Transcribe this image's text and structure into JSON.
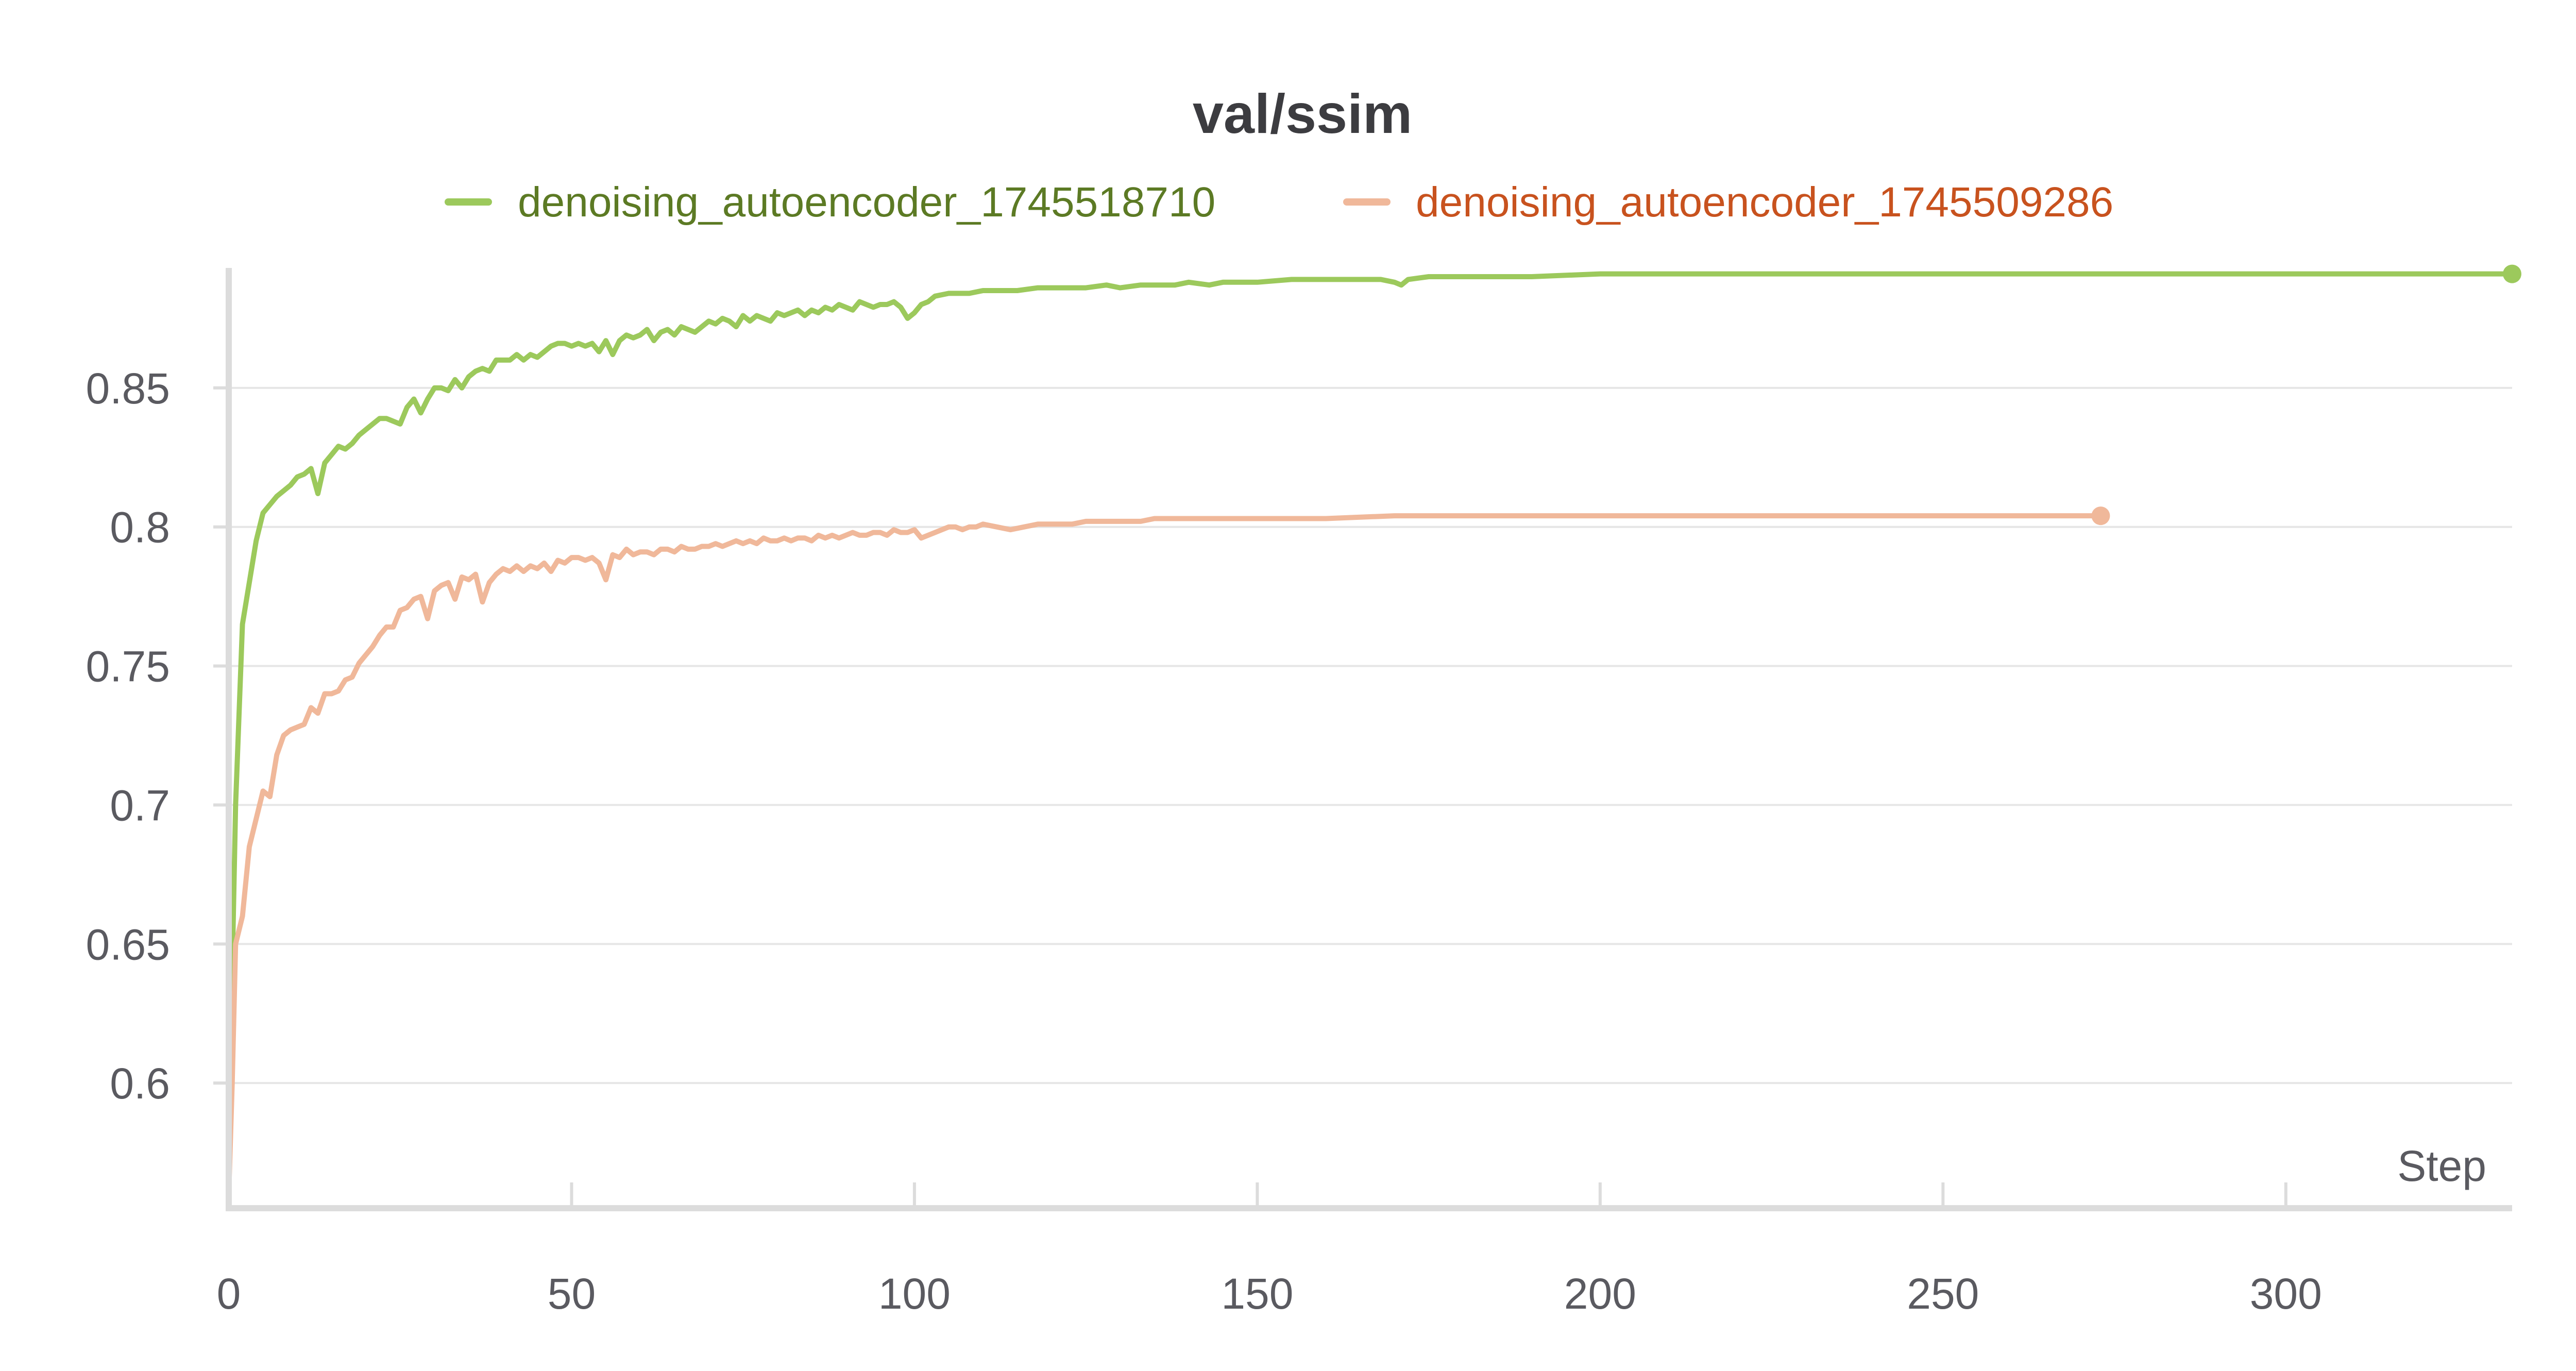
{
  "chart_data": {
    "type": "line",
    "title": "val/ssim",
    "xlabel": "Step",
    "ylabel": "",
    "xlim": [
      0,
      333
    ],
    "ylim": [
      0.555,
      0.895
    ],
    "x_ticks": [
      0,
      50,
      100,
      150,
      200,
      250,
      300
    ],
    "y_ticks": [
      0.6,
      0.65,
      0.7,
      0.75,
      0.8,
      0.85
    ],
    "x_tick_labels": [
      "0",
      "50",
      "100",
      "150",
      "200",
      "250",
      "300"
    ],
    "y_tick_labels": [
      "0.6",
      "0.65",
      "0.7",
      "0.75",
      "0.8",
      "0.85"
    ],
    "grid": "horizontal",
    "legend": "top-center",
    "series": [
      {
        "name": "denoising_autoencoder_1745518710",
        "color": "#9cc95c",
        "label_color": "#5c7a24",
        "points": [
          [
            0,
            0.56
          ],
          [
            0.5,
            0.64
          ],
          [
            1,
            0.7
          ],
          [
            2,
            0.765
          ],
          [
            3,
            0.78
          ],
          [
            4,
            0.795
          ],
          [
            5,
            0.805
          ],
          [
            6,
            0.808
          ],
          [
            7,
            0.811
          ],
          [
            8,
            0.813
          ],
          [
            9,
            0.815
          ],
          [
            10,
            0.818
          ],
          [
            11,
            0.819
          ],
          [
            12,
            0.821
          ],
          [
            13,
            0.812
          ],
          [
            14,
            0.823
          ],
          [
            15,
            0.826
          ],
          [
            16,
            0.829
          ],
          [
            17,
            0.828
          ],
          [
            18,
            0.83
          ],
          [
            19,
            0.833
          ],
          [
            20,
            0.835
          ],
          [
            21,
            0.837
          ],
          [
            22,
            0.839
          ],
          [
            23,
            0.839
          ],
          [
            24,
            0.838
          ],
          [
            25,
            0.837
          ],
          [
            26,
            0.843
          ],
          [
            27,
            0.846
          ],
          [
            28,
            0.841
          ],
          [
            29,
            0.846
          ],
          [
            30,
            0.85
          ],
          [
            31,
            0.85
          ],
          [
            32,
            0.849
          ],
          [
            33,
            0.853
          ],
          [
            34,
            0.85
          ],
          [
            35,
            0.854
          ],
          [
            36,
            0.856
          ],
          [
            37,
            0.857
          ],
          [
            38,
            0.856
          ],
          [
            39,
            0.86
          ],
          [
            40,
            0.86
          ],
          [
            41,
            0.86
          ],
          [
            42,
            0.862
          ],
          [
            43,
            0.86
          ],
          [
            44,
            0.862
          ],
          [
            45,
            0.861
          ],
          [
            46,
            0.863
          ],
          [
            47,
            0.865
          ],
          [
            48,
            0.866
          ],
          [
            49,
            0.866
          ],
          [
            50,
            0.865
          ],
          [
            51,
            0.866
          ],
          [
            52,
            0.865
          ],
          [
            53,
            0.866
          ],
          [
            54,
            0.863
          ],
          [
            55,
            0.867
          ],
          [
            56,
            0.862
          ],
          [
            57,
            0.867
          ],
          [
            58,
            0.869
          ],
          [
            59,
            0.868
          ],
          [
            60,
            0.869
          ],
          [
            61,
            0.871
          ],
          [
            62,
            0.867
          ],
          [
            63,
            0.87
          ],
          [
            64,
            0.871
          ],
          [
            65,
            0.869
          ],
          [
            66,
            0.872
          ],
          [
            67,
            0.871
          ],
          [
            68,
            0.87
          ],
          [
            69,
            0.872
          ],
          [
            70,
            0.874
          ],
          [
            71,
            0.873
          ],
          [
            72,
            0.875
          ],
          [
            73,
            0.874
          ],
          [
            74,
            0.872
          ],
          [
            75,
            0.876
          ],
          [
            76,
            0.874
          ],
          [
            77,
            0.876
          ],
          [
            78,
            0.875
          ],
          [
            79,
            0.874
          ],
          [
            80,
            0.877
          ],
          [
            81,
            0.876
          ],
          [
            82,
            0.877
          ],
          [
            83,
            0.878
          ],
          [
            84,
            0.876
          ],
          [
            85,
            0.878
          ],
          [
            86,
            0.877
          ],
          [
            87,
            0.879
          ],
          [
            88,
            0.878
          ],
          [
            89,
            0.88
          ],
          [
            90,
            0.879
          ],
          [
            91,
            0.878
          ],
          [
            92,
            0.881
          ],
          [
            93,
            0.88
          ],
          [
            94,
            0.879
          ],
          [
            95,
            0.88
          ],
          [
            96,
            0.88
          ],
          [
            97,
            0.881
          ],
          [
            98,
            0.879
          ],
          [
            99,
            0.875
          ],
          [
            100,
            0.877
          ],
          [
            101,
            0.88
          ],
          [
            102,
            0.881
          ],
          [
            103,
            0.883
          ],
          [
            105,
            0.884
          ],
          [
            108,
            0.884
          ],
          [
            110,
            0.885
          ],
          [
            113,
            0.885
          ],
          [
            115,
            0.885
          ],
          [
            118,
            0.886
          ],
          [
            120,
            0.886
          ],
          [
            123,
            0.886
          ],
          [
            125,
            0.886
          ],
          [
            128,
            0.887
          ],
          [
            130,
            0.886
          ],
          [
            133,
            0.887
          ],
          [
            135,
            0.887
          ],
          [
            138,
            0.887
          ],
          [
            140,
            0.888
          ],
          [
            143,
            0.887
          ],
          [
            145,
            0.888
          ],
          [
            148,
            0.888
          ],
          [
            150,
            0.888
          ],
          [
            155,
            0.889
          ],
          [
            160,
            0.889
          ],
          [
            165,
            0.889
          ],
          [
            168,
            0.889
          ],
          [
            170,
            0.888
          ],
          [
            171,
            0.887
          ],
          [
            172,
            0.889
          ],
          [
            175,
            0.89
          ],
          [
            180,
            0.89
          ],
          [
            190,
            0.89
          ],
          [
            200,
            0.891
          ],
          [
            220,
            0.891
          ],
          [
            250,
            0.891
          ],
          [
            280,
            0.891
          ],
          [
            310,
            0.891
          ],
          [
            333,
            0.891
          ]
        ]
      },
      {
        "name": "denoising_autoencoder_1745509286",
        "color": "#f0b89a",
        "label_color": "#c8521e",
        "points": [
          [
            0,
            0.56
          ],
          [
            0.5,
            0.6
          ],
          [
            1,
            0.65
          ],
          [
            2,
            0.66
          ],
          [
            3,
            0.685
          ],
          [
            4,
            0.695
          ],
          [
            5,
            0.705
          ],
          [
            6,
            0.703
          ],
          [
            7,
            0.718
          ],
          [
            8,
            0.725
          ],
          [
            9,
            0.727
          ],
          [
            10,
            0.728
          ],
          [
            11,
            0.729
          ],
          [
            12,
            0.735
          ],
          [
            13,
            0.733
          ],
          [
            14,
            0.74
          ],
          [
            15,
            0.74
          ],
          [
            16,
            0.741
          ],
          [
            17,
            0.745
          ],
          [
            18,
            0.746
          ],
          [
            19,
            0.751
          ],
          [
            20,
            0.754
          ],
          [
            21,
            0.757
          ],
          [
            22,
            0.761
          ],
          [
            23,
            0.764
          ],
          [
            24,
            0.764
          ],
          [
            25,
            0.77
          ],
          [
            26,
            0.771
          ],
          [
            27,
            0.774
          ],
          [
            28,
            0.775
          ],
          [
            29,
            0.767
          ],
          [
            30,
            0.777
          ],
          [
            31,
            0.779
          ],
          [
            32,
            0.78
          ],
          [
            33,
            0.774
          ],
          [
            34,
            0.782
          ],
          [
            35,
            0.781
          ],
          [
            36,
            0.783
          ],
          [
            37,
            0.773
          ],
          [
            38,
            0.78
          ],
          [
            39,
            0.783
          ],
          [
            40,
            0.785
          ],
          [
            41,
            0.784
          ],
          [
            42,
            0.786
          ],
          [
            43,
            0.784
          ],
          [
            44,
            0.786
          ],
          [
            45,
            0.785
          ],
          [
            46,
            0.787
          ],
          [
            47,
            0.784
          ],
          [
            48,
            0.788
          ],
          [
            49,
            0.787
          ],
          [
            50,
            0.789
          ],
          [
            51,
            0.789
          ],
          [
            52,
            0.788
          ],
          [
            53,
            0.789
          ],
          [
            54,
            0.787
          ],
          [
            55,
            0.781
          ],
          [
            56,
            0.79
          ],
          [
            57,
            0.789
          ],
          [
            58,
            0.792
          ],
          [
            59,
            0.79
          ],
          [
            60,
            0.791
          ],
          [
            61,
            0.791
          ],
          [
            62,
            0.79
          ],
          [
            63,
            0.792
          ],
          [
            64,
            0.792
          ],
          [
            65,
            0.791
          ],
          [
            66,
            0.793
          ],
          [
            67,
            0.792
          ],
          [
            68,
            0.792
          ],
          [
            69,
            0.793
          ],
          [
            70,
            0.793
          ],
          [
            71,
            0.794
          ],
          [
            72,
            0.793
          ],
          [
            73,
            0.794
          ],
          [
            74,
            0.795
          ],
          [
            75,
            0.794
          ],
          [
            76,
            0.795
          ],
          [
            77,
            0.794
          ],
          [
            78,
            0.796
          ],
          [
            79,
            0.795
          ],
          [
            80,
            0.795
          ],
          [
            81,
            0.796
          ],
          [
            82,
            0.795
          ],
          [
            83,
            0.796
          ],
          [
            84,
            0.796
          ],
          [
            85,
            0.795
          ],
          [
            86,
            0.797
          ],
          [
            87,
            0.796
          ],
          [
            88,
            0.797
          ],
          [
            89,
            0.796
          ],
          [
            90,
            0.797
          ],
          [
            91,
            0.798
          ],
          [
            92,
            0.797
          ],
          [
            93,
            0.797
          ],
          [
            94,
            0.798
          ],
          [
            95,
            0.798
          ],
          [
            96,
            0.797
          ],
          [
            97,
            0.799
          ],
          [
            98,
            0.798
          ],
          [
            99,
            0.798
          ],
          [
            100,
            0.799
          ],
          [
            101,
            0.796
          ],
          [
            102,
            0.797
          ],
          [
            103,
            0.798
          ],
          [
            104,
            0.799
          ],
          [
            105,
            0.8
          ],
          [
            106,
            0.8
          ],
          [
            107,
            0.799
          ],
          [
            108,
            0.8
          ],
          [
            109,
            0.8
          ],
          [
            110,
            0.801
          ],
          [
            112,
            0.8
          ],
          [
            114,
            0.799
          ],
          [
            116,
            0.8
          ],
          [
            118,
            0.801
          ],
          [
            120,
            0.801
          ],
          [
            123,
            0.801
          ],
          [
            125,
            0.802
          ],
          [
            128,
            0.802
          ],
          [
            130,
            0.802
          ],
          [
            133,
            0.802
          ],
          [
            135,
            0.803
          ],
          [
            140,
            0.803
          ],
          [
            145,
            0.803
          ],
          [
            150,
            0.803
          ],
          [
            160,
            0.803
          ],
          [
            170,
            0.804
          ],
          [
            180,
            0.804
          ],
          [
            190,
            0.804
          ],
          [
            200,
            0.804
          ],
          [
            220,
            0.804
          ],
          [
            240,
            0.804
          ],
          [
            260,
            0.804
          ],
          [
            273,
            0.804
          ]
        ]
      }
    ]
  }
}
